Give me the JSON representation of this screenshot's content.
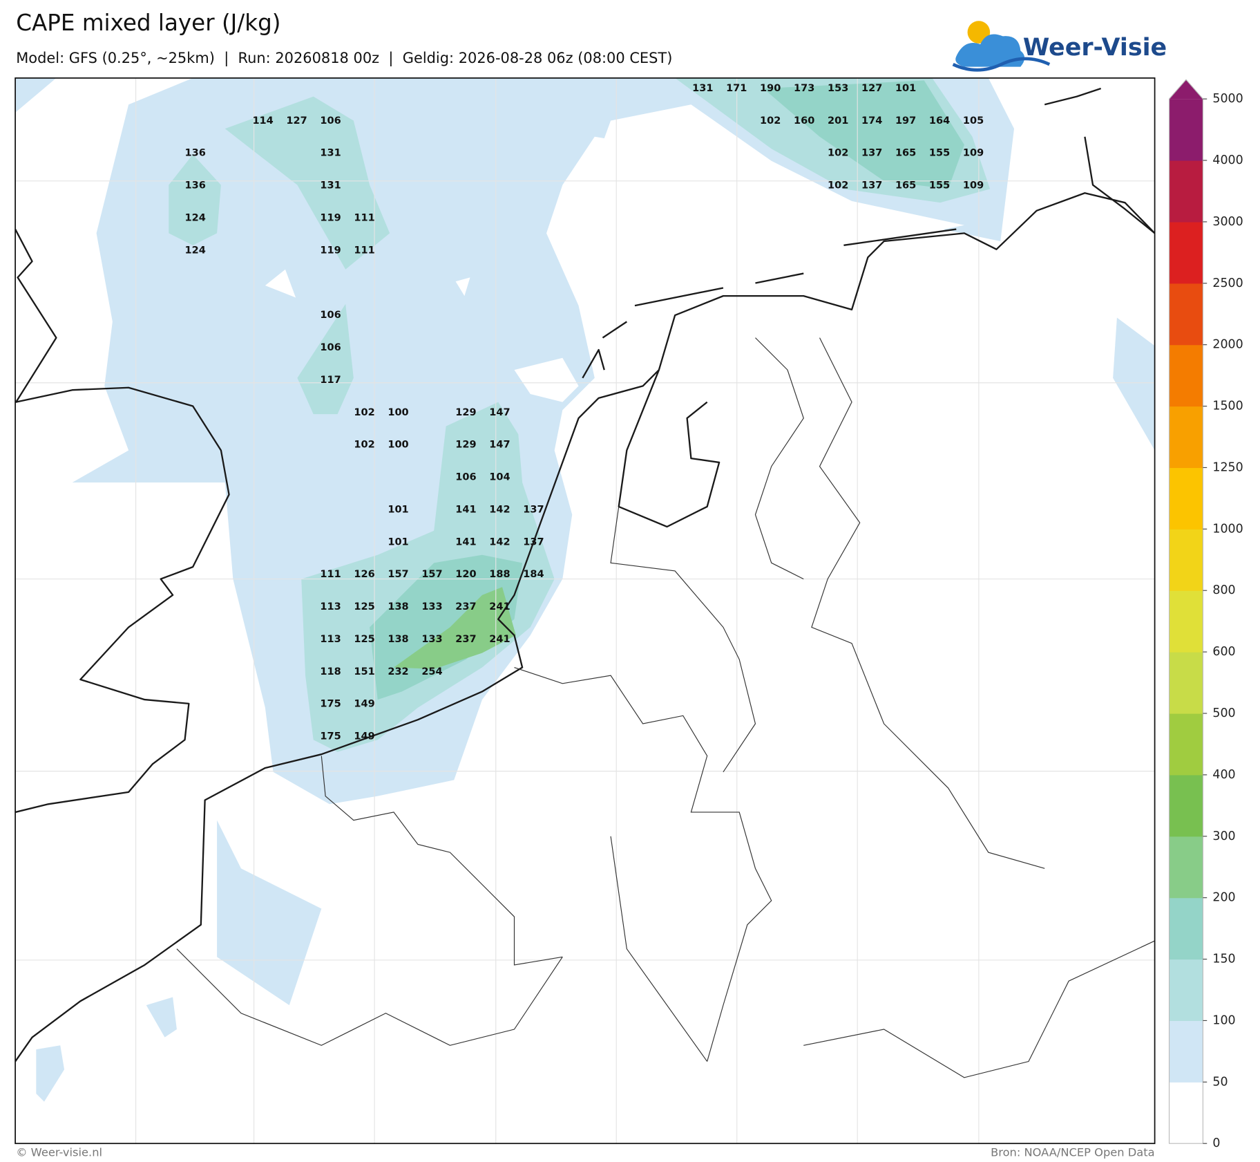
{
  "header": {
    "title": "CAPE mixed layer (J/kg)",
    "subtitle": "Model: GFS (0.25°, ~25km)  |  Run: 20260818 00z  |  Geldig: 2026-08-28 06z (08:00 CEST)"
  },
  "logo": {
    "text": "Weer-Visie"
  },
  "map": {
    "value_rows": [
      [
        null,
        null,
        null,
        null,
        null,
        null,
        null,
        null,
        null,
        null,
        null,
        null,
        null,
        null,
        null,
        131,
        171,
        190,
        173,
        153,
        127,
        101,
        null,
        null
      ],
      [
        null,
        null,
        114,
        127,
        106,
        null,
        null,
        null,
        null,
        null,
        null,
        null,
        null,
        null,
        null,
        null,
        null,
        102,
        160,
        201,
        174,
        197,
        164,
        105
      ],
      [
        136,
        null,
        null,
        null,
        131,
        null,
        null,
        null,
        null,
        null,
        null,
        null,
        null,
        null,
        null,
        null,
        null,
        null,
        null,
        102,
        137,
        165,
        155,
        109
      ],
      [
        136,
        null,
        null,
        null,
        131,
        null,
        null,
        null,
        null,
        null,
        null,
        null,
        null,
        null,
        null,
        null,
        null,
        null,
        null,
        102,
        137,
        165,
        155,
        109
      ],
      [
        124,
        null,
        null,
        null,
        119,
        111,
        null,
        null,
        null,
        null,
        null,
        null,
        null,
        null,
        null,
        null,
        null,
        null,
        null,
        null,
        null,
        null,
        null,
        null
      ],
      [
        124,
        null,
        null,
        null,
        119,
        111,
        null,
        null,
        null,
        null,
        null,
        null,
        null,
        null,
        null,
        null,
        null,
        null,
        null,
        null,
        null,
        null,
        null,
        null
      ],
      [
        null,
        null,
        null,
        null,
        null,
        null,
        null,
        null,
        null,
        null,
        null,
        null,
        null,
        null,
        null,
        null,
        null,
        null,
        null,
        null,
        null,
        null,
        null,
        null
      ],
      [
        null,
        null,
        null,
        null,
        106,
        null,
        null,
        null,
        null,
        null,
        null,
        null,
        null,
        null,
        null,
        null,
        null,
        null,
        null,
        null,
        null,
        null,
        null,
        null
      ],
      [
        null,
        null,
        null,
        null,
        106,
        null,
        null,
        null,
        null,
        null,
        null,
        null,
        null,
        null,
        null,
        null,
        null,
        null,
        null,
        null,
        null,
        null,
        null,
        null
      ],
      [
        null,
        null,
        null,
        null,
        117,
        null,
        null,
        null,
        null,
        null,
        null,
        null,
        null,
        null,
        null,
        null,
        null,
        null,
        null,
        null,
        null,
        null,
        null,
        null
      ],
      [
        null,
        null,
        null,
        null,
        null,
        102,
        100,
        null,
        129,
        147,
        null,
        null,
        null,
        null,
        null,
        null,
        null,
        null,
        null,
        null,
        null,
        null,
        null,
        null
      ],
      [
        null,
        null,
        null,
        null,
        null,
        102,
        100,
        null,
        129,
        147,
        null,
        null,
        null,
        null,
        null,
        null,
        null,
        null,
        null,
        null,
        null,
        null,
        null,
        null
      ],
      [
        null,
        null,
        null,
        null,
        null,
        null,
        null,
        null,
        106,
        104,
        null,
        null,
        null,
        null,
        null,
        null,
        null,
        null,
        null,
        null,
        null,
        null,
        null,
        null
      ],
      [
        null,
        null,
        null,
        null,
        null,
        null,
        101,
        null,
        141,
        142,
        137,
        null,
        null,
        null,
        null,
        null,
        null,
        null,
        null,
        null,
        null,
        null,
        null,
        null
      ],
      [
        null,
        null,
        null,
        null,
        null,
        null,
        101,
        null,
        141,
        142,
        137,
        null,
        null,
        null,
        null,
        null,
        null,
        null,
        null,
        null,
        null,
        null,
        null,
        null
      ],
      [
        null,
        null,
        null,
        null,
        111,
        126,
        157,
        157,
        120,
        188,
        184,
        null,
        null,
        null,
        null,
        null,
        null,
        null,
        null,
        null,
        null,
        null,
        null,
        null
      ],
      [
        null,
        null,
        null,
        null,
        113,
        125,
        138,
        133,
        237,
        241,
        null,
        null,
        null,
        null,
        null,
        null,
        null,
        null,
        null,
        null,
        null,
        null,
        null,
        null
      ],
      [
        null,
        null,
        null,
        null,
        113,
        125,
        138,
        133,
        237,
        241,
        null,
        null,
        null,
        null,
        null,
        null,
        null,
        null,
        null,
        null,
        null,
        null,
        null,
        null
      ],
      [
        null,
        null,
        null,
        null,
        118,
        151,
        232,
        254,
        null,
        null,
        null,
        null,
        null,
        null,
        null,
        null,
        null,
        null,
        null,
        null,
        null,
        null,
        null,
        null
      ],
      [
        null,
        null,
        null,
        null,
        175,
        149,
        null,
        null,
        null,
        null,
        null,
        null,
        null,
        null,
        null,
        null,
        null,
        null,
        null,
        null,
        null,
        null,
        null,
        null
      ],
      [
        null,
        null,
        null,
        null,
        175,
        149,
        null,
        null,
        null,
        null,
        null,
        null,
        null,
        null,
        null,
        null,
        null,
        null,
        null,
        null,
        null,
        null,
        null,
        null
      ]
    ]
  },
  "colorbar": {
    "ticks": [
      0,
      50,
      100,
      150,
      200,
      300,
      400,
      500,
      600,
      800,
      1000,
      1250,
      1500,
      2000,
      2500,
      3000,
      4000,
      5000
    ],
    "colors": [
      "#ffffff",
      "#d0e6f5",
      "#b2dfdf",
      "#94d4c8",
      "#88cc88",
      "#78c050",
      "#a0cc40",
      "#c8dc48",
      "#e0e038",
      "#f2d418",
      "#fcc400",
      "#f8a000",
      "#f47c00",
      "#e84c10",
      "#dc2020",
      "#b81c40",
      "#8c1c6c"
    ],
    "extend_color": "#8c1c6c"
  },
  "footer": {
    "left": "© Weer-visie.nl",
    "right": "Bron: NOAA/NCEP Open Data"
  }
}
